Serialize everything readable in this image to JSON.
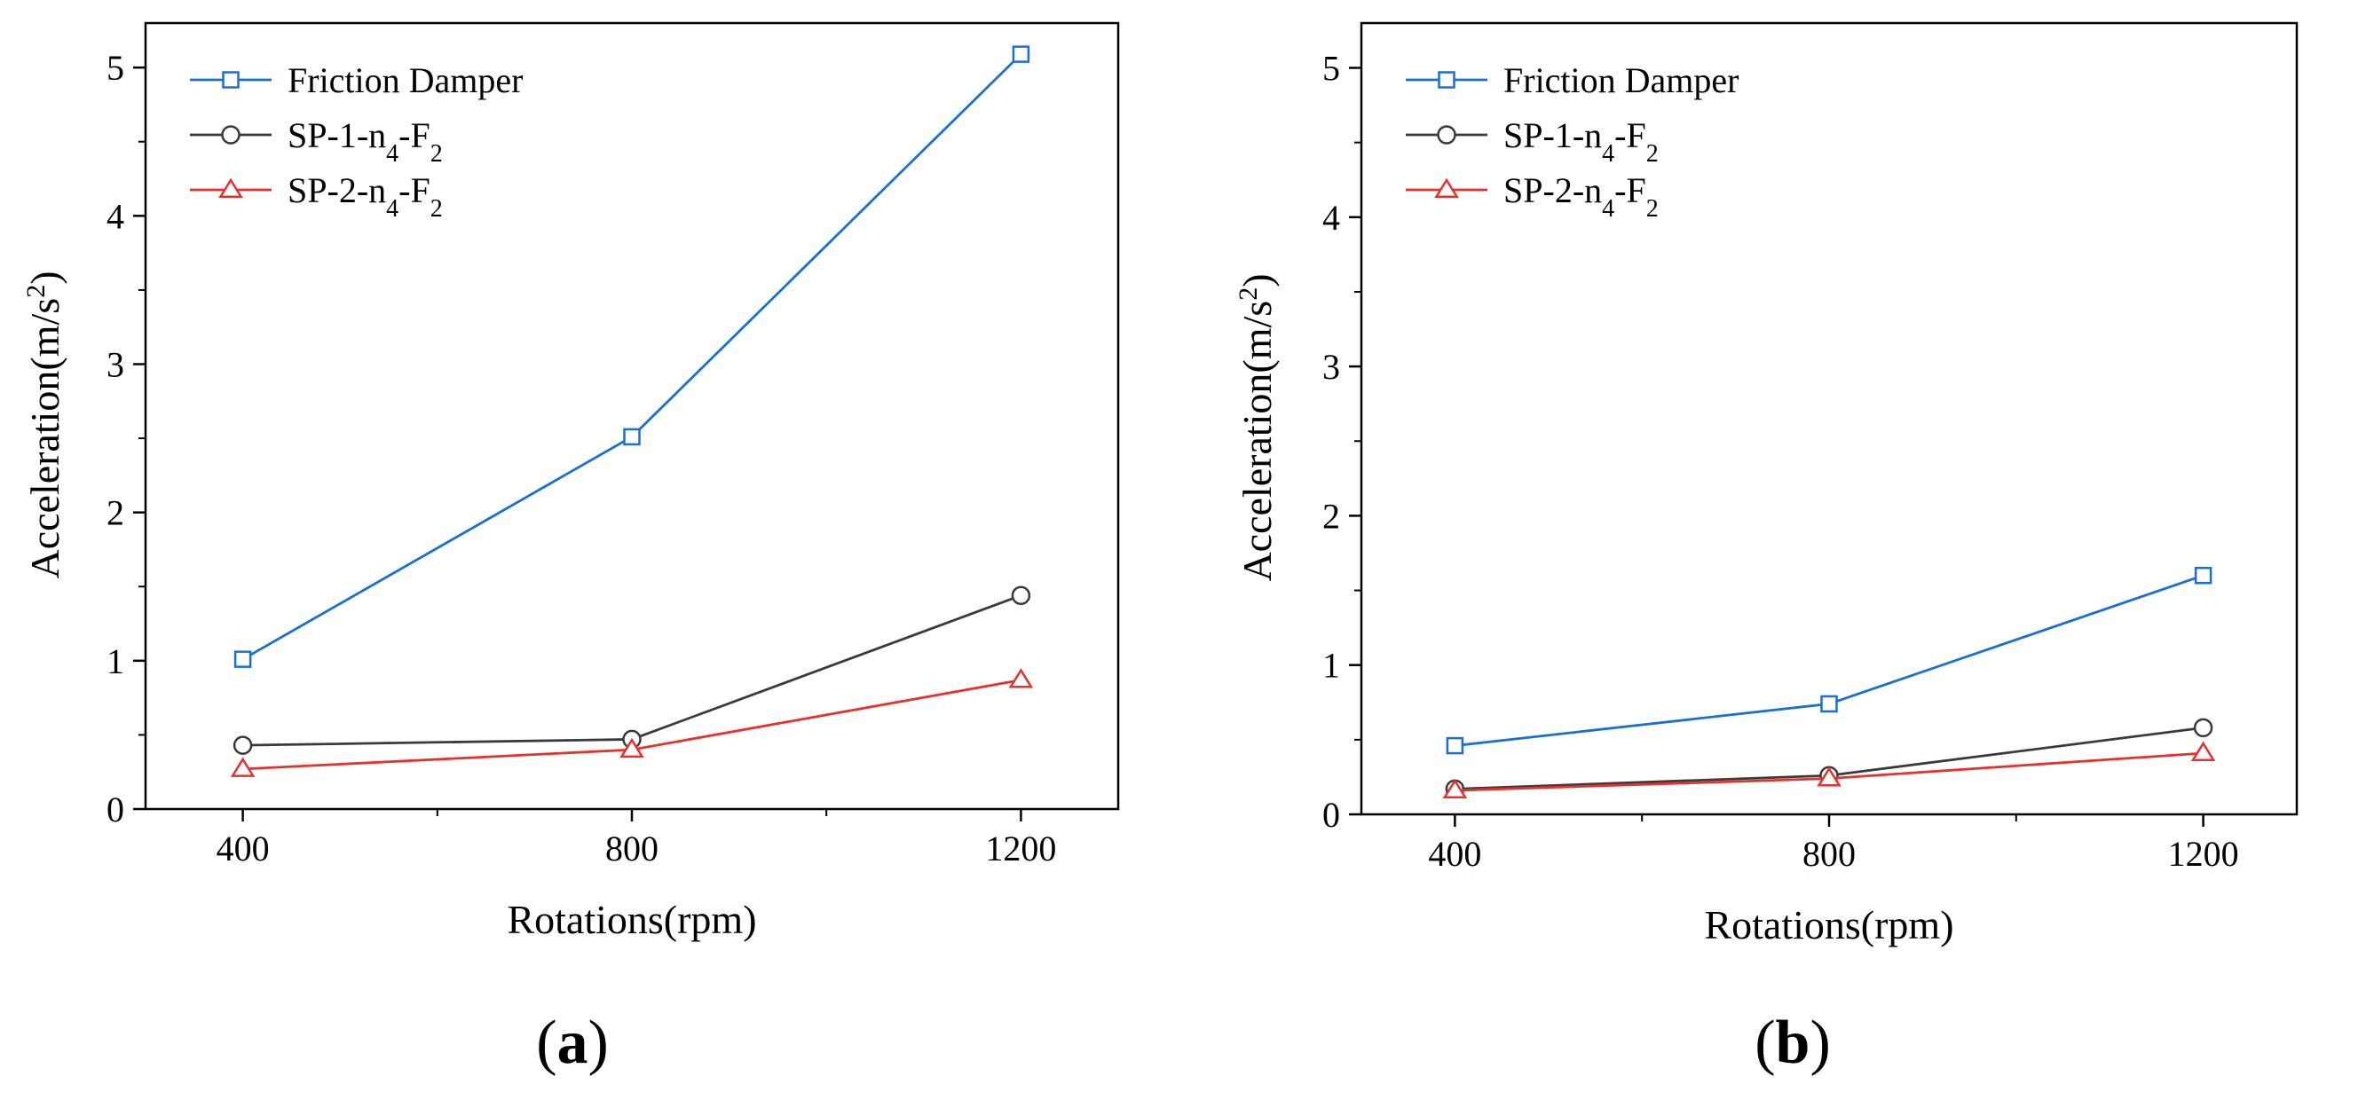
{
  "chart_data": [
    {
      "type": "line",
      "panel": "a",
      "panel_label": "a",
      "xlabel": "Rotations(rpm)",
      "ylabel": "Acceleration(m/s",
      "ylabel_sup": "2",
      "ylabel_close": ")",
      "x": [
        400,
        800,
        1200
      ],
      "x_tick_labels": [
        "400",
        "800",
        "1200"
      ],
      "xlim": [
        300,
        1300
      ],
      "ylim": [
        0,
        5.3
      ],
      "y_ticks": [
        0,
        1,
        2,
        3,
        4,
        5
      ],
      "y_tick_labels": [
        "0",
        "1",
        "2",
        "3",
        "4",
        "5"
      ],
      "legend_position": "top-left",
      "series": [
        {
          "name": "Friction Damper",
          "label_main": "Friction Damper",
          "label_sub": "",
          "label_tail": "",
          "label_sub2": "",
          "color": "#1a6fd4",
          "marker": "square",
          "values": [
            1.01,
            2.51,
            5.09
          ]
        },
        {
          "name": "SP-1-n4-F2",
          "label_main": "SP-1-n",
          "label_sub": "4",
          "label_tail": "-F",
          "label_sub2": "2",
          "color": "#3a3a3a",
          "marker": "circle",
          "values": [
            0.43,
            0.47,
            1.44
          ]
        },
        {
          "name": "SP-2-n4-F2",
          "label_main": "SP-2-n",
          "label_sub": "4",
          "label_tail": "-F",
          "label_sub2": "2",
          "color": "#e8302c",
          "marker": "triangle",
          "values": [
            0.27,
            0.4,
            0.87
          ]
        }
      ]
    },
    {
      "type": "line",
      "panel": "b",
      "panel_label": "b",
      "xlabel": "Rotations(rpm)",
      "ylabel": "Acceleration(m/s",
      "ylabel_sup": "2",
      "ylabel_close": ")",
      "x": [
        400,
        800,
        1200
      ],
      "x_tick_labels": [
        "400",
        "800",
        "1200"
      ],
      "xlim": [
        300,
        1300
      ],
      "ylim": [
        0,
        5.3
      ],
      "y_ticks": [
        0,
        1,
        2,
        3,
        4,
        5
      ],
      "y_tick_labels": [
        "0",
        "1",
        "2",
        "3",
        "4",
        "5"
      ],
      "legend_position": "top-left",
      "series": [
        {
          "name": "Friction Damper",
          "label_main": "Friction Damper",
          "label_sub": "",
          "label_tail": "",
          "label_sub2": "",
          "color": "#1a6fd4",
          "marker": "square",
          "values": [
            0.46,
            0.74,
            1.6
          ]
        },
        {
          "name": "SP-1-n4-F2",
          "label_main": "SP-1-n",
          "label_sub": "4",
          "label_tail": "-F",
          "label_sub2": "2",
          "color": "#3a3a3a",
          "marker": "circle",
          "values": [
            0.17,
            0.26,
            0.58
          ]
        },
        {
          "name": "SP-2-n4-F2",
          "label_main": "SP-2-n",
          "label_sub": "4",
          "label_tail": "-F",
          "label_sub2": "2",
          "color": "#e8302c",
          "marker": "triangle",
          "values": [
            0.16,
            0.24,
            0.41
          ]
        }
      ]
    }
  ]
}
